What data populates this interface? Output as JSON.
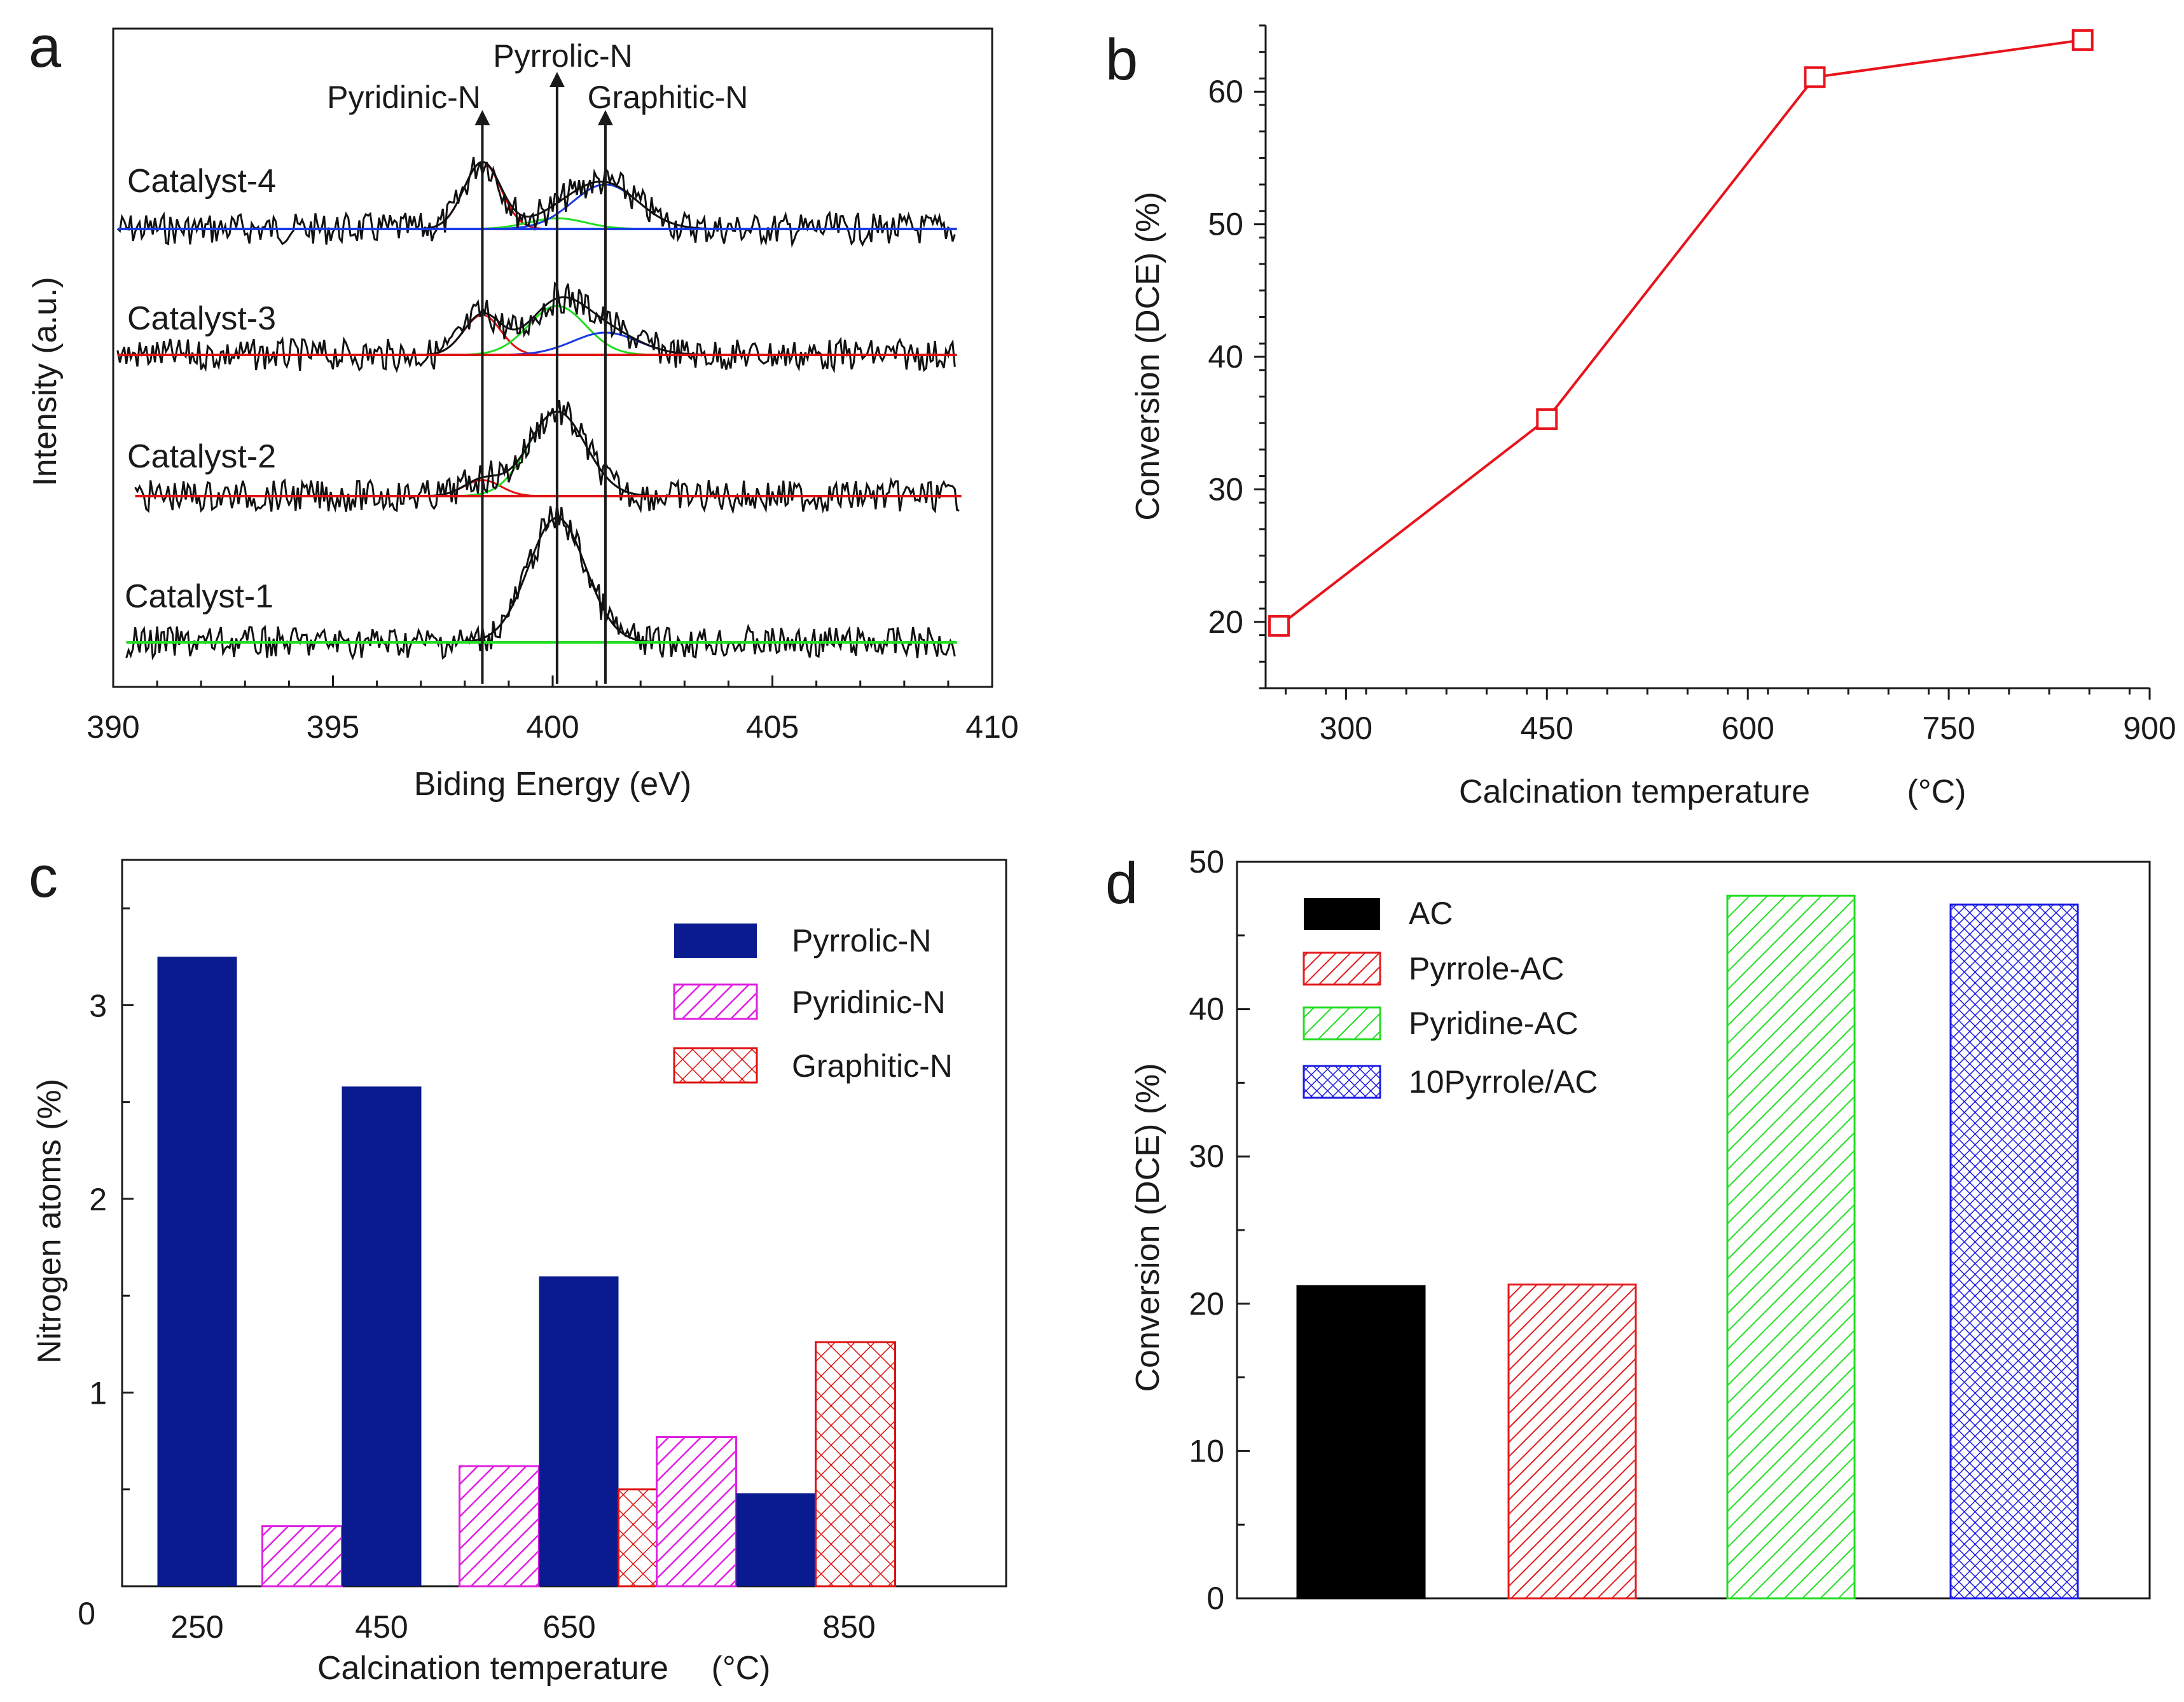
{
  "colors": {
    "axis": "#1a1a1a",
    "pyrrolic": "#0a1a8f",
    "pyridinic": "#e020e0",
    "graphitic": "#e01010",
    "ac": "#000000",
    "pyrrole_ac": "#e41a1c",
    "pyridine_ac": "#22dd22",
    "pyrrole10_ac": "#1a1ae6",
    "fit_red": "#e01010",
    "fit_green": "#22dd22",
    "fit_blue": "#1a3ae6",
    "line_b": "#e8141c"
  },
  "chart_data": [
    {
      "panel": "a",
      "type": "line",
      "title": "",
      "xlabel": "Biding Energy (eV)",
      "ylabel": "Intensity (a.u.)",
      "xlim": [
        390,
        410
      ],
      "x_ticks": [
        "390",
        "395",
        "400",
        "405",
        "410"
      ],
      "peak_labels": [
        {
          "label": "Pyridinic-N",
          "energy": 398.4
        },
        {
          "label": "Pyrrolic-N",
          "energy": 400.1
        },
        {
          "label": "Graphitic-N",
          "energy": 401.2
        }
      ],
      "series": [
        {
          "name": "Catalyst-4",
          "baseline": 0.0,
          "peaks": {
            "pyridinic": 0.75,
            "pyrrolic": 0.12,
            "graphitic": 0.5
          }
        },
        {
          "name": "Catalyst-3",
          "baseline": 0.0,
          "peaks": {
            "pyridinic": 0.45,
            "pyrrolic": 0.55,
            "graphitic": 0.25
          }
        },
        {
          "name": "Catalyst-2",
          "baseline": 0.0,
          "peaks": {
            "pyridinic": 0.18,
            "pyrrolic": 0.95,
            "graphitic": 0.0
          }
        },
        {
          "name": "Catalyst-1",
          "baseline": 0.0,
          "peaks": {
            "pyridinic": 0.0,
            "pyrrolic": 1.4,
            "graphitic": 0.0
          }
        }
      ]
    },
    {
      "panel": "b",
      "type": "line",
      "title": "",
      "xlabel": "Calcination temperature",
      "xlabel_unit": "(°C)",
      "ylabel": "Conversion (DCE) (%)",
      "xlim": [
        240,
        900
      ],
      "ylim": [
        15,
        65
      ],
      "x_ticks": [
        "300",
        "450",
        "600",
        "750",
        "900"
      ],
      "y_ticks": [
        "20",
        "30",
        "40",
        "50",
        "60"
      ],
      "x": [
        250,
        450,
        650,
        850
      ],
      "values": [
        19.7,
        35.3,
        61.1,
        63.9
      ]
    },
    {
      "panel": "c",
      "type": "bar",
      "title": "",
      "xlabel": "Calcination temperature",
      "xlabel_unit": "(°C)",
      "ylabel": "Nitrogen atoms (%)",
      "ylim": [
        0,
        3.75
      ],
      "categories": [
        "250",
        "450",
        "650",
        "850"
      ],
      "y_ticks": [
        "0",
        "1",
        "2",
        "3"
      ],
      "legend_position": "top-right",
      "series": [
        {
          "name": "Pyrrolic-N",
          "pattern": "solid",
          "values": [
            3.25,
            2.58,
            1.6,
            0.48
          ]
        },
        {
          "name": "Pyridinic-N",
          "pattern": "hatch",
          "values": [
            0,
            0.31,
            0.62,
            0.77
          ]
        },
        {
          "name": "Graphitic-N",
          "pattern": "crosshatch",
          "values": [
            0,
            0,
            0.5,
            1.26
          ]
        }
      ]
    },
    {
      "panel": "d",
      "type": "bar",
      "title": "",
      "xlabel": "",
      "ylabel": "Conversion (DCE) (%)",
      "ylim": [
        0,
        50
      ],
      "y_ticks": [
        "0",
        "10",
        "20",
        "30",
        "40",
        "50"
      ],
      "legend_position": "top-left",
      "categories": [
        "AC",
        "Pyrrole-AC",
        "Pyridine-AC",
        "10Pyrrole/AC"
      ],
      "values": [
        21.2,
        21.3,
        47.7,
        47.1
      ]
    }
  ]
}
